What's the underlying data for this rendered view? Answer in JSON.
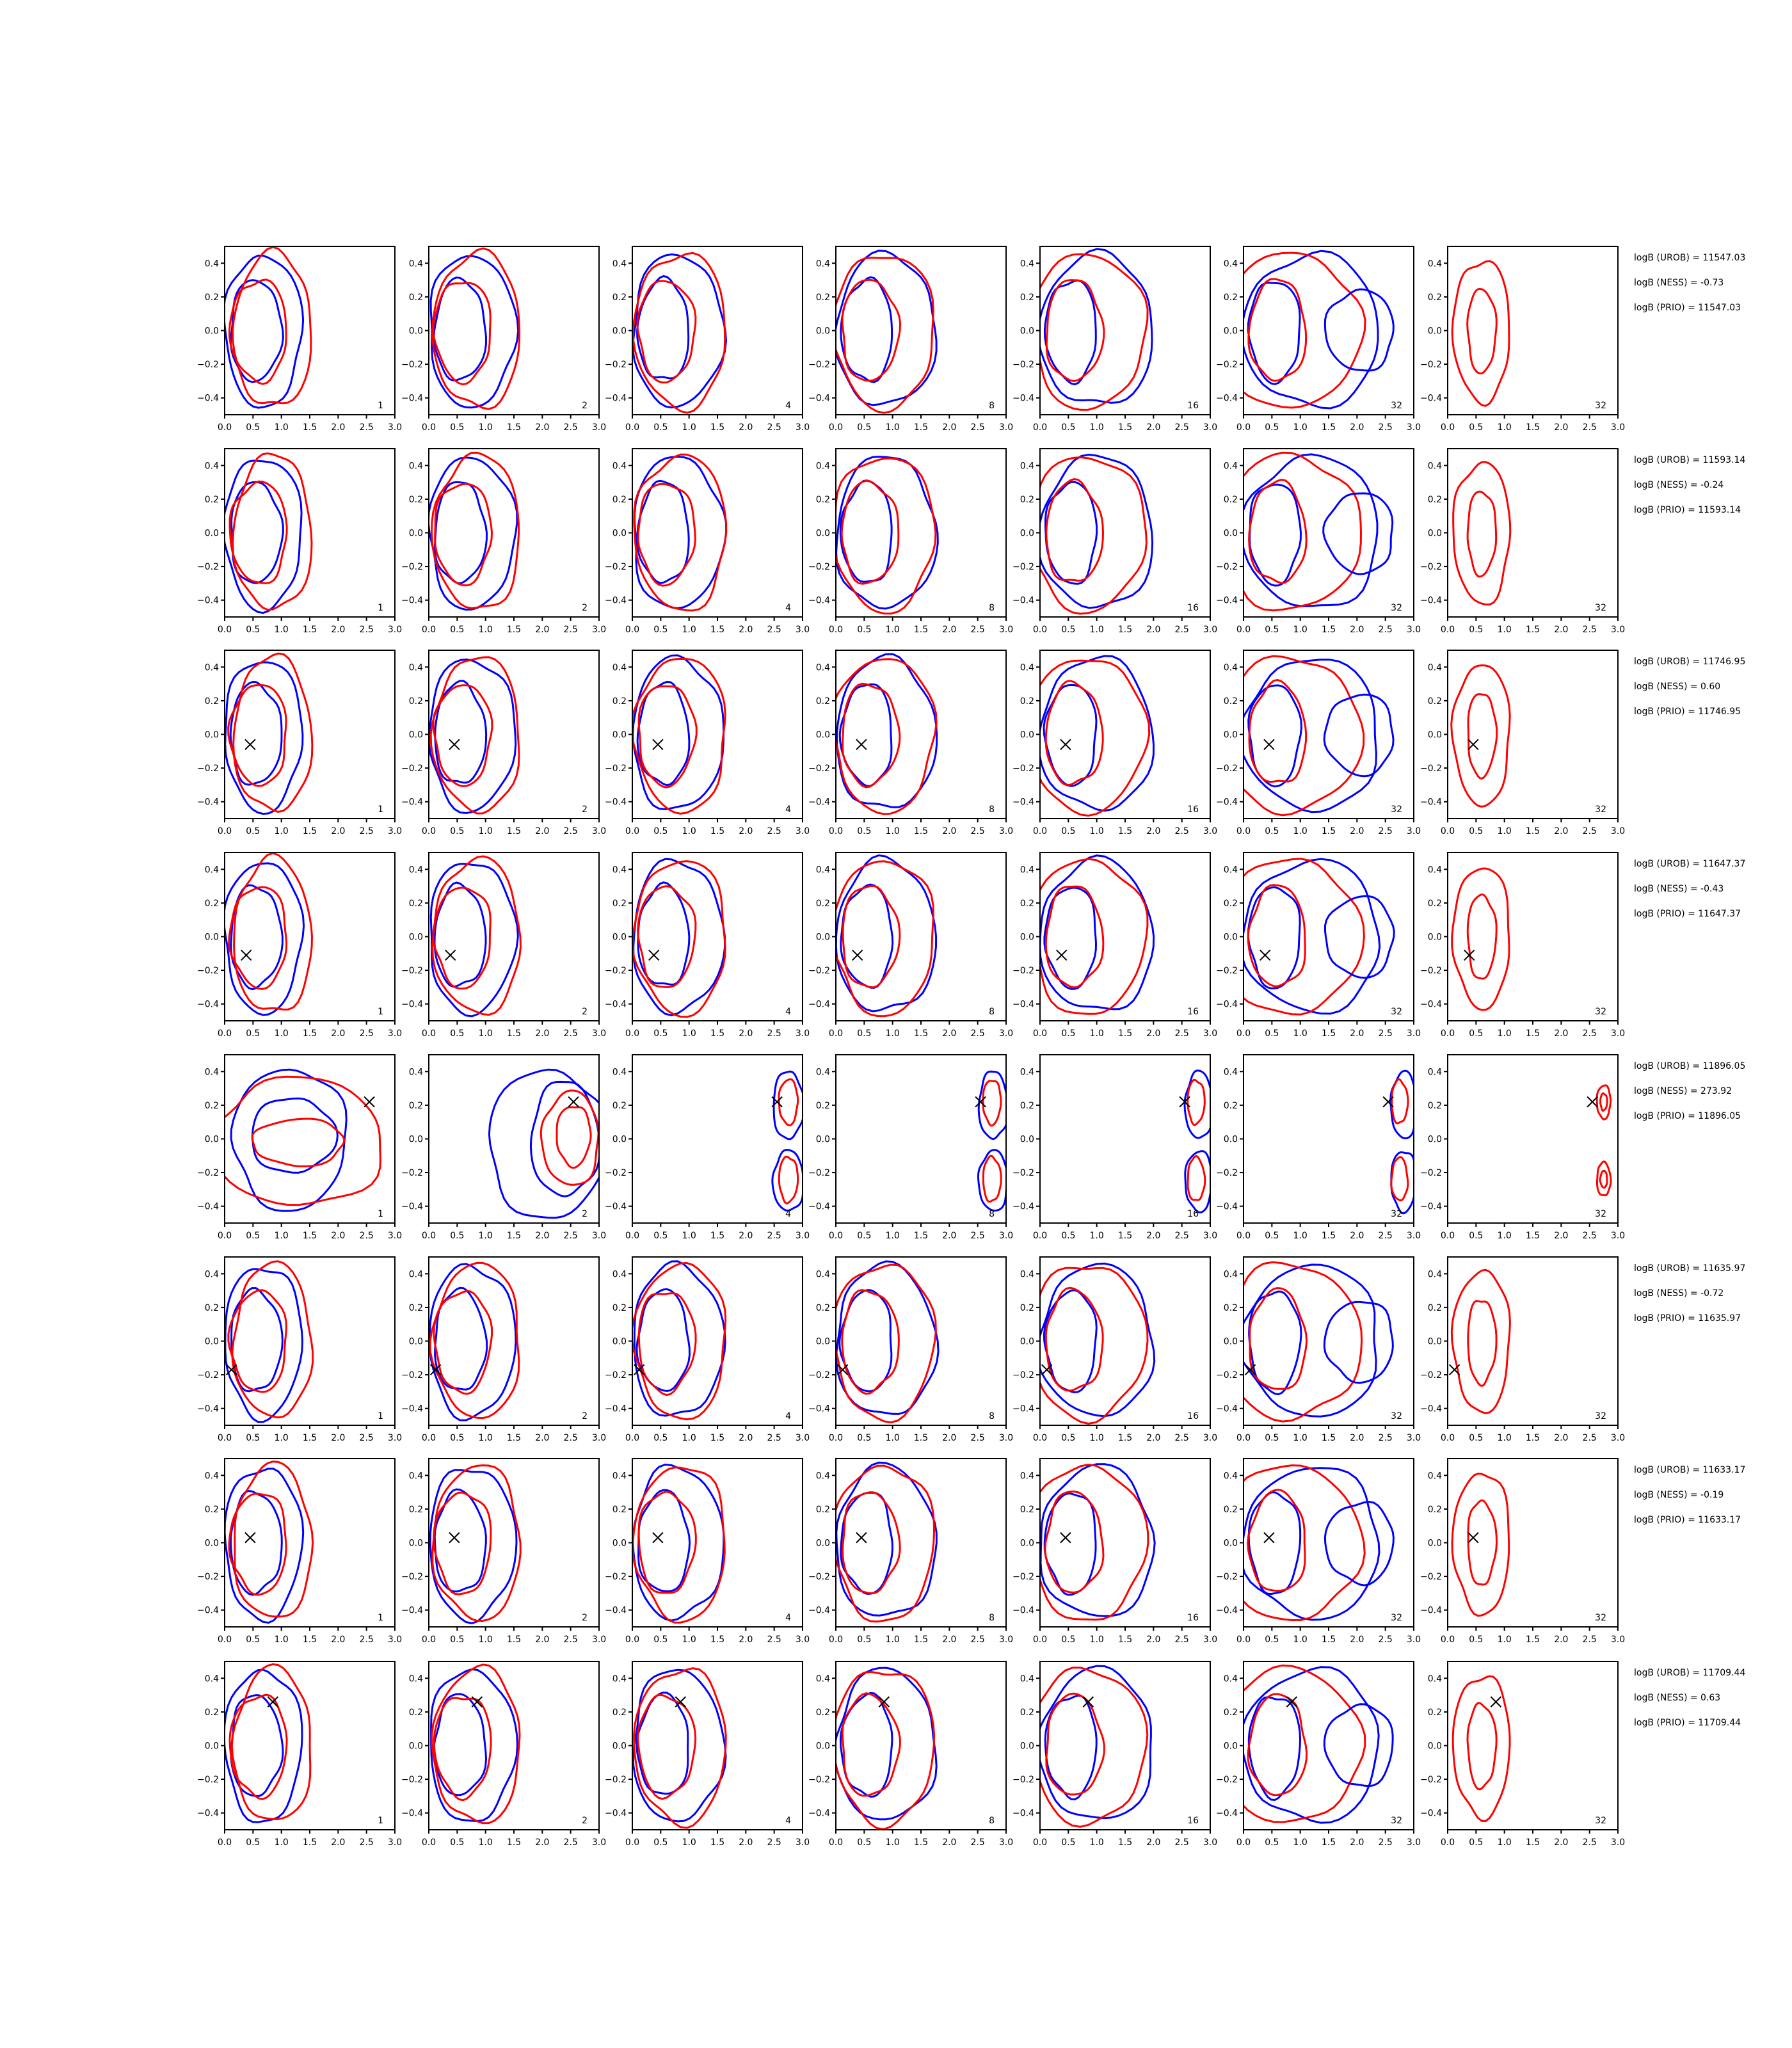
{
  "colors": {
    "ness": "#0000ff",
    "prio": "#ff0000",
    "truth": "#000000"
  },
  "chart_data": {
    "type": "contour-grid",
    "rows": 8,
    "cols": 7,
    "xlim": [
      0,
      3.0
    ],
    "ylim": [
      -0.5,
      0.5
    ],
    "xticks": [
      "0.0",
      "0.5",
      "1.0",
      "1.5",
      "2.0",
      "2.5",
      "3.0"
    ],
    "yticks": [
      "0.4",
      "0.2",
      "0.0",
      "−0.2",
      "−0.4"
    ],
    "ytick_values": [
      0.4,
      0.2,
      0.0,
      -0.2,
      -0.4
    ],
    "xtick_values": [
      0,
      0.5,
      1.0,
      1.5,
      2.0,
      2.5,
      3.0
    ],
    "panel_labels": [
      "1",
      "2",
      "4",
      "8",
      "16",
      "32",
      "32"
    ],
    "markers": [
      null,
      null,
      [
        0.45,
        -0.06
      ],
      [
        0.38,
        -0.11
      ],
      [
        2.55,
        0.22
      ],
      [
        0.12,
        -0.17
      ],
      [
        0.45,
        0.03
      ],
      [
        0.85,
        0.26
      ]
    ],
    "bayes_factors": [
      [
        "logB (UROB) = 11547.03",
        "logB (NESS) = -0.73",
        "logB (PRIO) = 11547.03"
      ],
      [
        "logB (UROB) = 11593.14",
        "logB (NESS) = -0.24",
        "logB (PRIO) = 11593.14"
      ],
      [
        "logB (UROB) = 11746.95",
        "logB (NESS) = 0.60",
        "logB (PRIO) = 11746.95"
      ],
      [
        "logB (UROB) = 11647.37",
        "logB (NESS) = -0.43",
        "logB (PRIO) = 11647.37"
      ],
      [
        "logB (UROB) = 11896.05",
        "logB (NESS) = 273.92",
        "logB (PRIO) = 11896.05"
      ],
      [
        "logB (UROB) = 11635.97",
        "logB (NESS) = -0.72",
        "logB (PRIO) = 11635.97"
      ],
      [
        "logB (UROB) = 11633.17",
        "logB (NESS) = -0.19",
        "logB (PRIO) = 11633.17"
      ],
      [
        "logB (UROB) = 11709.44",
        "logB (NESS) = 0.63",
        "logB (PRIO) = 11709.44"
      ]
    ],
    "grid": false,
    "legend": "none"
  }
}
